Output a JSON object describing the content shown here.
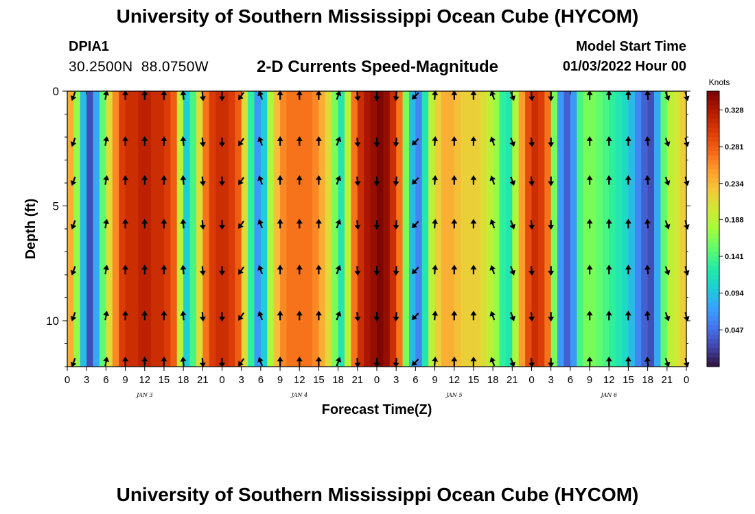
{
  "header": {
    "title": "University of Southern Mississippi Ocean Cube (HYCOM)",
    "station_id": "DPIA1",
    "coords": "30.2500N  88.0750W",
    "plot_title": "2-D Currents Speed-Magnitude",
    "model_start_label": "Model Start Time",
    "model_start_value": "01/03/2022 Hour 00"
  },
  "footer": {
    "title": "University of Southern Mississippi Ocean Cube (HYCOM)"
  },
  "colors": {
    "ramp": [
      "#30123b",
      "#4145ab",
      "#4675ed",
      "#39a2fc",
      "#1bcfd4",
      "#24eca6",
      "#61fc6c",
      "#a4fc3b",
      "#d1e834",
      "#f3c63a",
      "#fe9b2d",
      "#f36315",
      "#d93806",
      "#b11901",
      "#7a0402"
    ]
  },
  "chart_data": {
    "type": "heatmap",
    "title": "2-D Currents Speed-Magnitude",
    "xlabel": "Forecast Time(Z)",
    "ylabel": "Depth (ft)",
    "x_start_hour": 0,
    "x_end_hour": 96,
    "x_tick_step_hours": 3,
    "x_tick_labels": [
      "0",
      "3",
      "6",
      "9",
      "12",
      "15",
      "18",
      "21",
      "0",
      "3",
      "6",
      "9",
      "12",
      "15",
      "18",
      "21",
      "0",
      "3",
      "6",
      "9",
      "12",
      "15",
      "18",
      "21",
      "0",
      "3",
      "6",
      "9",
      "12",
      "15",
      "18",
      "21",
      "0"
    ],
    "day_labels": [
      {
        "hour": 12,
        "label": "JAN 3"
      },
      {
        "hour": 36,
        "label": "JAN 4"
      },
      {
        "hour": 60,
        "label": "JAN 5"
      },
      {
        "hour": 84,
        "label": "JAN 6"
      }
    ],
    "ylim": [
      0,
      12
    ],
    "y_major_ticks": [
      0,
      5,
      10
    ],
    "y_tick_labels": [
      "0",
      "5",
      "10"
    ],
    "colorbar": {
      "label": "Knots",
      "min": 0.0,
      "max": 0.352,
      "ticks": [
        0.047,
        0.094,
        0.141,
        0.188,
        0.234,
        0.281,
        0.328
      ],
      "tick_labels": [
        "0.047",
        "0.094",
        "0.141",
        "0.188",
        "0.234",
        "0.281",
        "0.328"
      ]
    },
    "speed_by_hour": [
      0.24,
      0.17,
      0.09,
      0.03,
      0.08,
      0.15,
      0.21,
      0.26,
      0.3,
      0.31,
      0.31,
      0.32,
      0.32,
      0.31,
      0.31,
      0.3,
      0.28,
      0.19,
      0.1,
      0.14,
      0.21,
      0.27,
      0.3,
      0.31,
      0.31,
      0.3,
      0.28,
      0.21,
      0.13,
      0.07,
      0.1,
      0.18,
      0.23,
      0.26,
      0.27,
      0.27,
      0.27,
      0.27,
      0.26,
      0.24,
      0.21,
      0.16,
      0.12,
      0.19,
      0.27,
      0.31,
      0.33,
      0.34,
      0.35,
      0.34,
      0.31,
      0.27,
      0.16,
      0.09,
      0.06,
      0.12,
      0.19,
      0.22,
      0.24,
      0.24,
      0.23,
      0.22,
      0.22,
      0.22,
      0.21,
      0.19,
      0.17,
      0.13,
      0.12,
      0.18,
      0.25,
      0.29,
      0.31,
      0.3,
      0.27,
      0.16,
      0.07,
      0.04,
      0.07,
      0.14,
      0.16,
      0.16,
      0.15,
      0.14,
      0.13,
      0.12,
      0.11,
      0.09,
      0.06,
      0.04,
      0.03,
      0.08,
      0.15,
      0.19,
      0.2,
      0.22
    ],
    "arrow_depths": [
      0.2,
      2.2,
      3.9,
      5.8,
      7.8,
      9.8,
      11.8
    ],
    "arrow_directions_deg": [
      {
        "hour": 1,
        "dir": 200
      },
      {
        "hour": 6,
        "dir": 10
      },
      {
        "hour": 9,
        "dir": 0
      },
      {
        "hour": 12,
        "dir": 0
      },
      {
        "hour": 15,
        "dir": 0
      },
      {
        "hour": 18,
        "dir": 355
      },
      {
        "hour": 21,
        "dir": 175
      },
      {
        "hour": 24,
        "dir": 180
      },
      {
        "hour": 27,
        "dir": 215
      },
      {
        "hour": 30,
        "dir": 340
      },
      {
        "hour": 33,
        "dir": 0
      },
      {
        "hour": 36,
        "dir": 0
      },
      {
        "hour": 39,
        "dir": 0
      },
      {
        "hour": 42,
        "dir": 20
      },
      {
        "hour": 45,
        "dir": 175
      },
      {
        "hour": 48,
        "dir": 180
      },
      {
        "hour": 51,
        "dir": 185
      },
      {
        "hour": 54,
        "dir": 225
      },
      {
        "hour": 57,
        "dir": 5
      },
      {
        "hour": 60,
        "dir": 0
      },
      {
        "hour": 63,
        "dir": 0
      },
      {
        "hour": 66,
        "dir": 340
      },
      {
        "hour": 69,
        "dir": 160
      },
      {
        "hour": 72,
        "dir": 175
      },
      {
        "hour": 75,
        "dir": 180
      },
      {
        "hour": 81,
        "dir": 0
      },
      {
        "hour": 84,
        "dir": 0
      },
      {
        "hour": 87,
        "dir": 0
      },
      {
        "hour": 90,
        "dir": 355
      },
      {
        "hour": 93,
        "dir": 160
      },
      {
        "hour": 96,
        "dir": 165
      }
    ]
  }
}
